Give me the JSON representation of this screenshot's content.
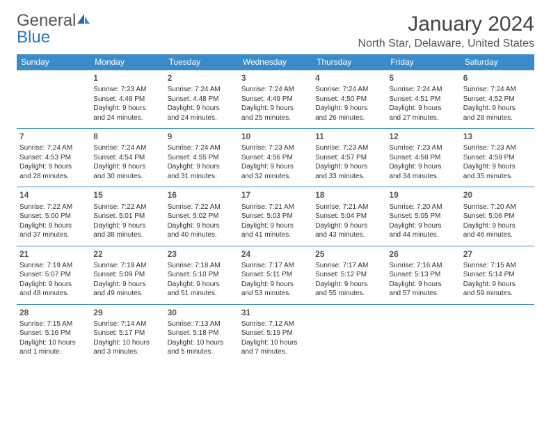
{
  "brand": {
    "part1": "General",
    "part2": "Blue",
    "color_gray": "#555555",
    "color_blue": "#2a7ac0"
  },
  "title": "January 2024",
  "location": "North Star, Delaware, United States",
  "header_bg": "#3b8bc9",
  "weekdays": [
    "Sunday",
    "Monday",
    "Tuesday",
    "Wednesday",
    "Thursday",
    "Friday",
    "Saturday"
  ],
  "weeks": [
    [
      null,
      {
        "n": "1",
        "sunrise": "7:23 AM",
        "sunset": "4:48 PM",
        "day_l1": "Daylight: 9 hours",
        "day_l2": "and 24 minutes."
      },
      {
        "n": "2",
        "sunrise": "7:24 AM",
        "sunset": "4:48 PM",
        "day_l1": "Daylight: 9 hours",
        "day_l2": "and 24 minutes."
      },
      {
        "n": "3",
        "sunrise": "7:24 AM",
        "sunset": "4:49 PM",
        "day_l1": "Daylight: 9 hours",
        "day_l2": "and 25 minutes."
      },
      {
        "n": "4",
        "sunrise": "7:24 AM",
        "sunset": "4:50 PM",
        "day_l1": "Daylight: 9 hours",
        "day_l2": "and 26 minutes."
      },
      {
        "n": "5",
        "sunrise": "7:24 AM",
        "sunset": "4:51 PM",
        "day_l1": "Daylight: 9 hours",
        "day_l2": "and 27 minutes."
      },
      {
        "n": "6",
        "sunrise": "7:24 AM",
        "sunset": "4:52 PM",
        "day_l1": "Daylight: 9 hours",
        "day_l2": "and 28 minutes."
      }
    ],
    [
      {
        "n": "7",
        "sunrise": "7:24 AM",
        "sunset": "4:53 PM",
        "day_l1": "Daylight: 9 hours",
        "day_l2": "and 28 minutes."
      },
      {
        "n": "8",
        "sunrise": "7:24 AM",
        "sunset": "4:54 PM",
        "day_l1": "Daylight: 9 hours",
        "day_l2": "and 30 minutes."
      },
      {
        "n": "9",
        "sunrise": "7:24 AM",
        "sunset": "4:55 PM",
        "day_l1": "Daylight: 9 hours",
        "day_l2": "and 31 minutes."
      },
      {
        "n": "10",
        "sunrise": "7:23 AM",
        "sunset": "4:56 PM",
        "day_l1": "Daylight: 9 hours",
        "day_l2": "and 32 minutes."
      },
      {
        "n": "11",
        "sunrise": "7:23 AM",
        "sunset": "4:57 PM",
        "day_l1": "Daylight: 9 hours",
        "day_l2": "and 33 minutes."
      },
      {
        "n": "12",
        "sunrise": "7:23 AM",
        "sunset": "4:58 PM",
        "day_l1": "Daylight: 9 hours",
        "day_l2": "and 34 minutes."
      },
      {
        "n": "13",
        "sunrise": "7:23 AM",
        "sunset": "4:59 PM",
        "day_l1": "Daylight: 9 hours",
        "day_l2": "and 35 minutes."
      }
    ],
    [
      {
        "n": "14",
        "sunrise": "7:22 AM",
        "sunset": "5:00 PM",
        "day_l1": "Daylight: 9 hours",
        "day_l2": "and 37 minutes."
      },
      {
        "n": "15",
        "sunrise": "7:22 AM",
        "sunset": "5:01 PM",
        "day_l1": "Daylight: 9 hours",
        "day_l2": "and 38 minutes."
      },
      {
        "n": "16",
        "sunrise": "7:22 AM",
        "sunset": "5:02 PM",
        "day_l1": "Daylight: 9 hours",
        "day_l2": "and 40 minutes."
      },
      {
        "n": "17",
        "sunrise": "7:21 AM",
        "sunset": "5:03 PM",
        "day_l1": "Daylight: 9 hours",
        "day_l2": "and 41 minutes."
      },
      {
        "n": "18",
        "sunrise": "7:21 AM",
        "sunset": "5:04 PM",
        "day_l1": "Daylight: 9 hours",
        "day_l2": "and 43 minutes."
      },
      {
        "n": "19",
        "sunrise": "7:20 AM",
        "sunset": "5:05 PM",
        "day_l1": "Daylight: 9 hours",
        "day_l2": "and 44 minutes."
      },
      {
        "n": "20",
        "sunrise": "7:20 AM",
        "sunset": "5:06 PM",
        "day_l1": "Daylight: 9 hours",
        "day_l2": "and 46 minutes."
      }
    ],
    [
      {
        "n": "21",
        "sunrise": "7:19 AM",
        "sunset": "5:07 PM",
        "day_l1": "Daylight: 9 hours",
        "day_l2": "and 48 minutes."
      },
      {
        "n": "22",
        "sunrise": "7:19 AM",
        "sunset": "5:09 PM",
        "day_l1": "Daylight: 9 hours",
        "day_l2": "and 49 minutes."
      },
      {
        "n": "23",
        "sunrise": "7:18 AM",
        "sunset": "5:10 PM",
        "day_l1": "Daylight: 9 hours",
        "day_l2": "and 51 minutes."
      },
      {
        "n": "24",
        "sunrise": "7:17 AM",
        "sunset": "5:11 PM",
        "day_l1": "Daylight: 9 hours",
        "day_l2": "and 53 minutes."
      },
      {
        "n": "25",
        "sunrise": "7:17 AM",
        "sunset": "5:12 PM",
        "day_l1": "Daylight: 9 hours",
        "day_l2": "and 55 minutes."
      },
      {
        "n": "26",
        "sunrise": "7:16 AM",
        "sunset": "5:13 PM",
        "day_l1": "Daylight: 9 hours",
        "day_l2": "and 57 minutes."
      },
      {
        "n": "27",
        "sunrise": "7:15 AM",
        "sunset": "5:14 PM",
        "day_l1": "Daylight: 9 hours",
        "day_l2": "and 59 minutes."
      }
    ],
    [
      {
        "n": "28",
        "sunrise": "7:15 AM",
        "sunset": "5:16 PM",
        "day_l1": "Daylight: 10 hours",
        "day_l2": "and 1 minute."
      },
      {
        "n": "29",
        "sunrise": "7:14 AM",
        "sunset": "5:17 PM",
        "day_l1": "Daylight: 10 hours",
        "day_l2": "and 3 minutes."
      },
      {
        "n": "30",
        "sunrise": "7:13 AM",
        "sunset": "5:18 PM",
        "day_l1": "Daylight: 10 hours",
        "day_l2": "and 5 minutes."
      },
      {
        "n": "31",
        "sunrise": "7:12 AM",
        "sunset": "5:19 PM",
        "day_l1": "Daylight: 10 hours",
        "day_l2": "and 7 minutes."
      },
      null,
      null,
      null
    ]
  ],
  "labels": {
    "sunrise_prefix": "Sunrise: ",
    "sunset_prefix": "Sunset: "
  }
}
